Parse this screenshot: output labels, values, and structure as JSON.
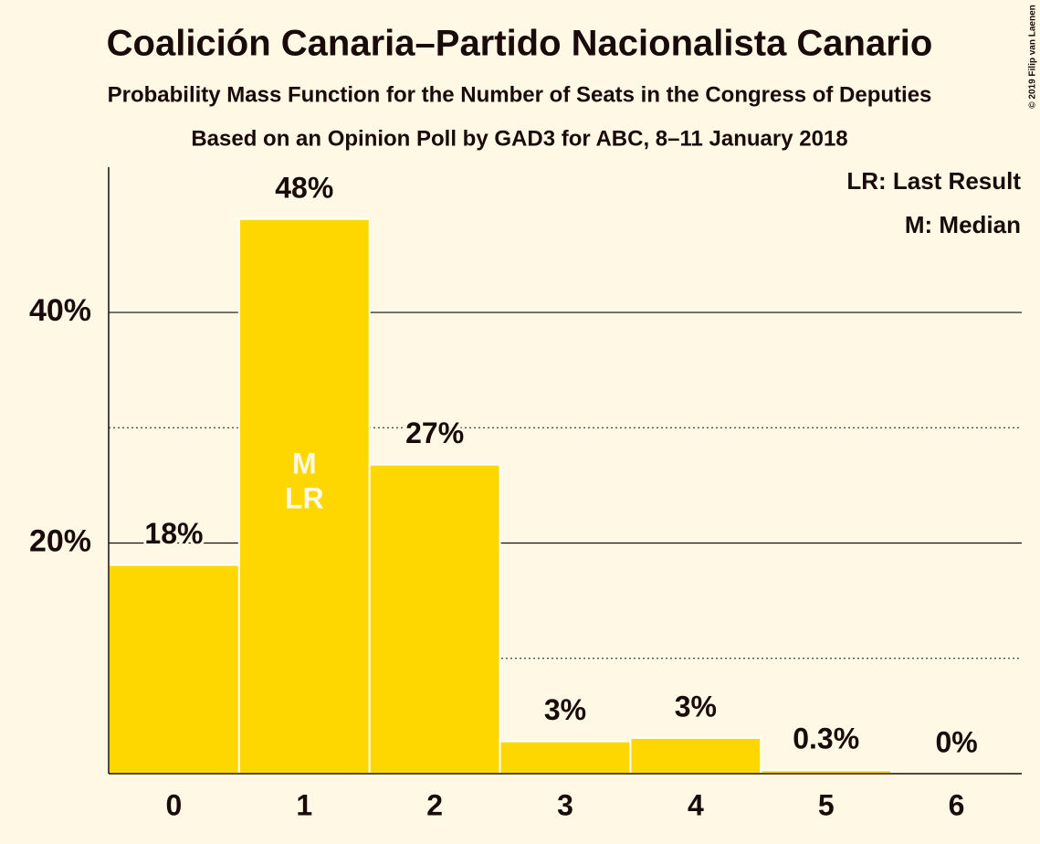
{
  "chart_data": {
    "type": "bar",
    "title": "Coalición Canaria–Partido Nacionalista Canario",
    "subtitle": "Probability Mass Function for the Number of Seats in the Congress of Deputies",
    "source": "Based on an Opinion Poll by GAD3 for ABC, 8–11 January 2018",
    "copyright": "© 2019 Filip van Laenen",
    "categories": [
      "0",
      "1",
      "2",
      "3",
      "4",
      "5",
      "6"
    ],
    "values": [
      18.1,
      48.1,
      26.8,
      2.8,
      3.1,
      0.3,
      0
    ],
    "value_labels": [
      "18%",
      "48%",
      "27%",
      "3%",
      "3%",
      "0.3%",
      "0%"
    ],
    "color": "#ffd700",
    "ylim": [
      0,
      52.6
    ],
    "yticks": [
      {
        "value": 20,
        "label": "20%"
      },
      {
        "value": 40,
        "label": "40%"
      }
    ],
    "minor_yticks": [
      10,
      30
    ],
    "grid": true,
    "markers": [
      {
        "label": "M",
        "category": "1"
      },
      {
        "label": "LR",
        "category": "1"
      }
    ],
    "legend": [
      "LR: Last Result",
      "M: Median"
    ]
  }
}
